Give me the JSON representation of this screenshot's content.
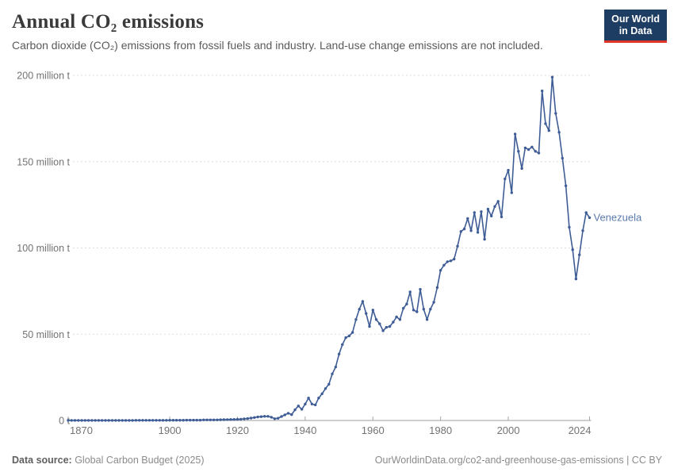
{
  "header": {
    "title": "Annual CO₂ emissions",
    "subtitle": "Carbon dioxide (CO₂) emissions from fossil fuels and industry. Land-use change emissions are not included."
  },
  "logo": {
    "line1": "Our World",
    "line2": "in Data",
    "bg_color": "#1d3d63",
    "accent_color": "#e0352b"
  },
  "chart_data": {
    "type": "line",
    "title": "Annual CO₂ emissions",
    "entity": "Venezuela",
    "unit": "million t",
    "xlim": [
      1870,
      2024
    ],
    "ylim": [
      0,
      200
    ],
    "grid": "horizontal-dashed",
    "legend_position": "end-of-line label",
    "x_ticks": [
      1870,
      1900,
      1920,
      1940,
      1960,
      1980,
      2000,
      2024
    ],
    "y_ticks": [
      {
        "value": 0,
        "label": "0 t"
      },
      {
        "value": 50,
        "label": "50 million t"
      },
      {
        "value": 100,
        "label": "100 million t"
      },
      {
        "value": 150,
        "label": "150 million t"
      },
      {
        "value": 200,
        "label": "200 million t"
      }
    ],
    "line_color": "#3e5c95",
    "label_color": "#5b79ae",
    "series": [
      {
        "name": "Venezuela",
        "start_year": 1870,
        "end_year": 2024,
        "values": [
          0.05,
          0.05,
          0.05,
          0.05,
          0.05,
          0.05,
          0.05,
          0.05,
          0.05,
          0.05,
          0.05,
          0.05,
          0.05,
          0.05,
          0.05,
          0.05,
          0.05,
          0.05,
          0.05,
          0.05,
          0.08,
          0.08,
          0.08,
          0.08,
          0.08,
          0.08,
          0.08,
          0.08,
          0.08,
          0.08,
          0.15,
          0.15,
          0.15,
          0.15,
          0.15,
          0.2,
          0.2,
          0.2,
          0.2,
          0.2,
          0.3,
          0.3,
          0.3,
          0.3,
          0.3,
          0.4,
          0.45,
          0.5,
          0.55,
          0.6,
          0.65,
          0.75,
          0.9,
          1.1,
          1.4,
          1.7,
          2.0,
          2.2,
          2.4,
          2.4,
          1.9,
          1.0,
          1.3,
          2.3,
          3.2,
          4.2,
          3.4,
          6.2,
          8.4,
          6.5,
          9.5,
          13.0,
          9.5,
          9.0,
          13.0,
          15.5,
          18.5,
          21.0,
          27.0,
          31.0,
          38.5,
          44.0,
          48.0,
          49.0,
          51.0,
          58.5,
          64.5,
          69.0,
          62.0,
          54.5,
          64.0,
          58.5,
          56.0,
          52.0,
          54.0,
          54.5,
          57.0,
          60.0,
          58.5,
          65.0,
          67.5,
          74.5,
          64.0,
          63.0,
          76.0,
          64.5,
          58.5,
          64.5,
          68.5,
          77.0,
          87.0,
          90.0,
          92.0,
          92.5,
          93.5,
          101.0,
          109.5,
          111.0,
          117.0,
          110.0,
          120.5,
          109.0,
          121.0,
          105.0,
          122.5,
          118.5,
          124.0,
          127.0,
          118.0,
          140.0,
          145.0,
          132.0,
          166.0,
          156.0,
          146.0,
          158.0,
          157.0,
          158.5,
          156.0,
          155.0,
          191.0,
          172.0,
          168.0,
          199.0,
          178.0,
          167.0,
          152.0,
          136.0,
          112.0,
          99.0,
          82.0,
          96.0,
          110.0,
          120.5,
          117.5
        ]
      }
    ]
  },
  "footer": {
    "source_label": "Data source:",
    "source_value": " Global Carbon Budget (2025)",
    "right_text": "OurWorldinData.org/co2-and-greenhouse-gas-emissions | CC BY"
  }
}
